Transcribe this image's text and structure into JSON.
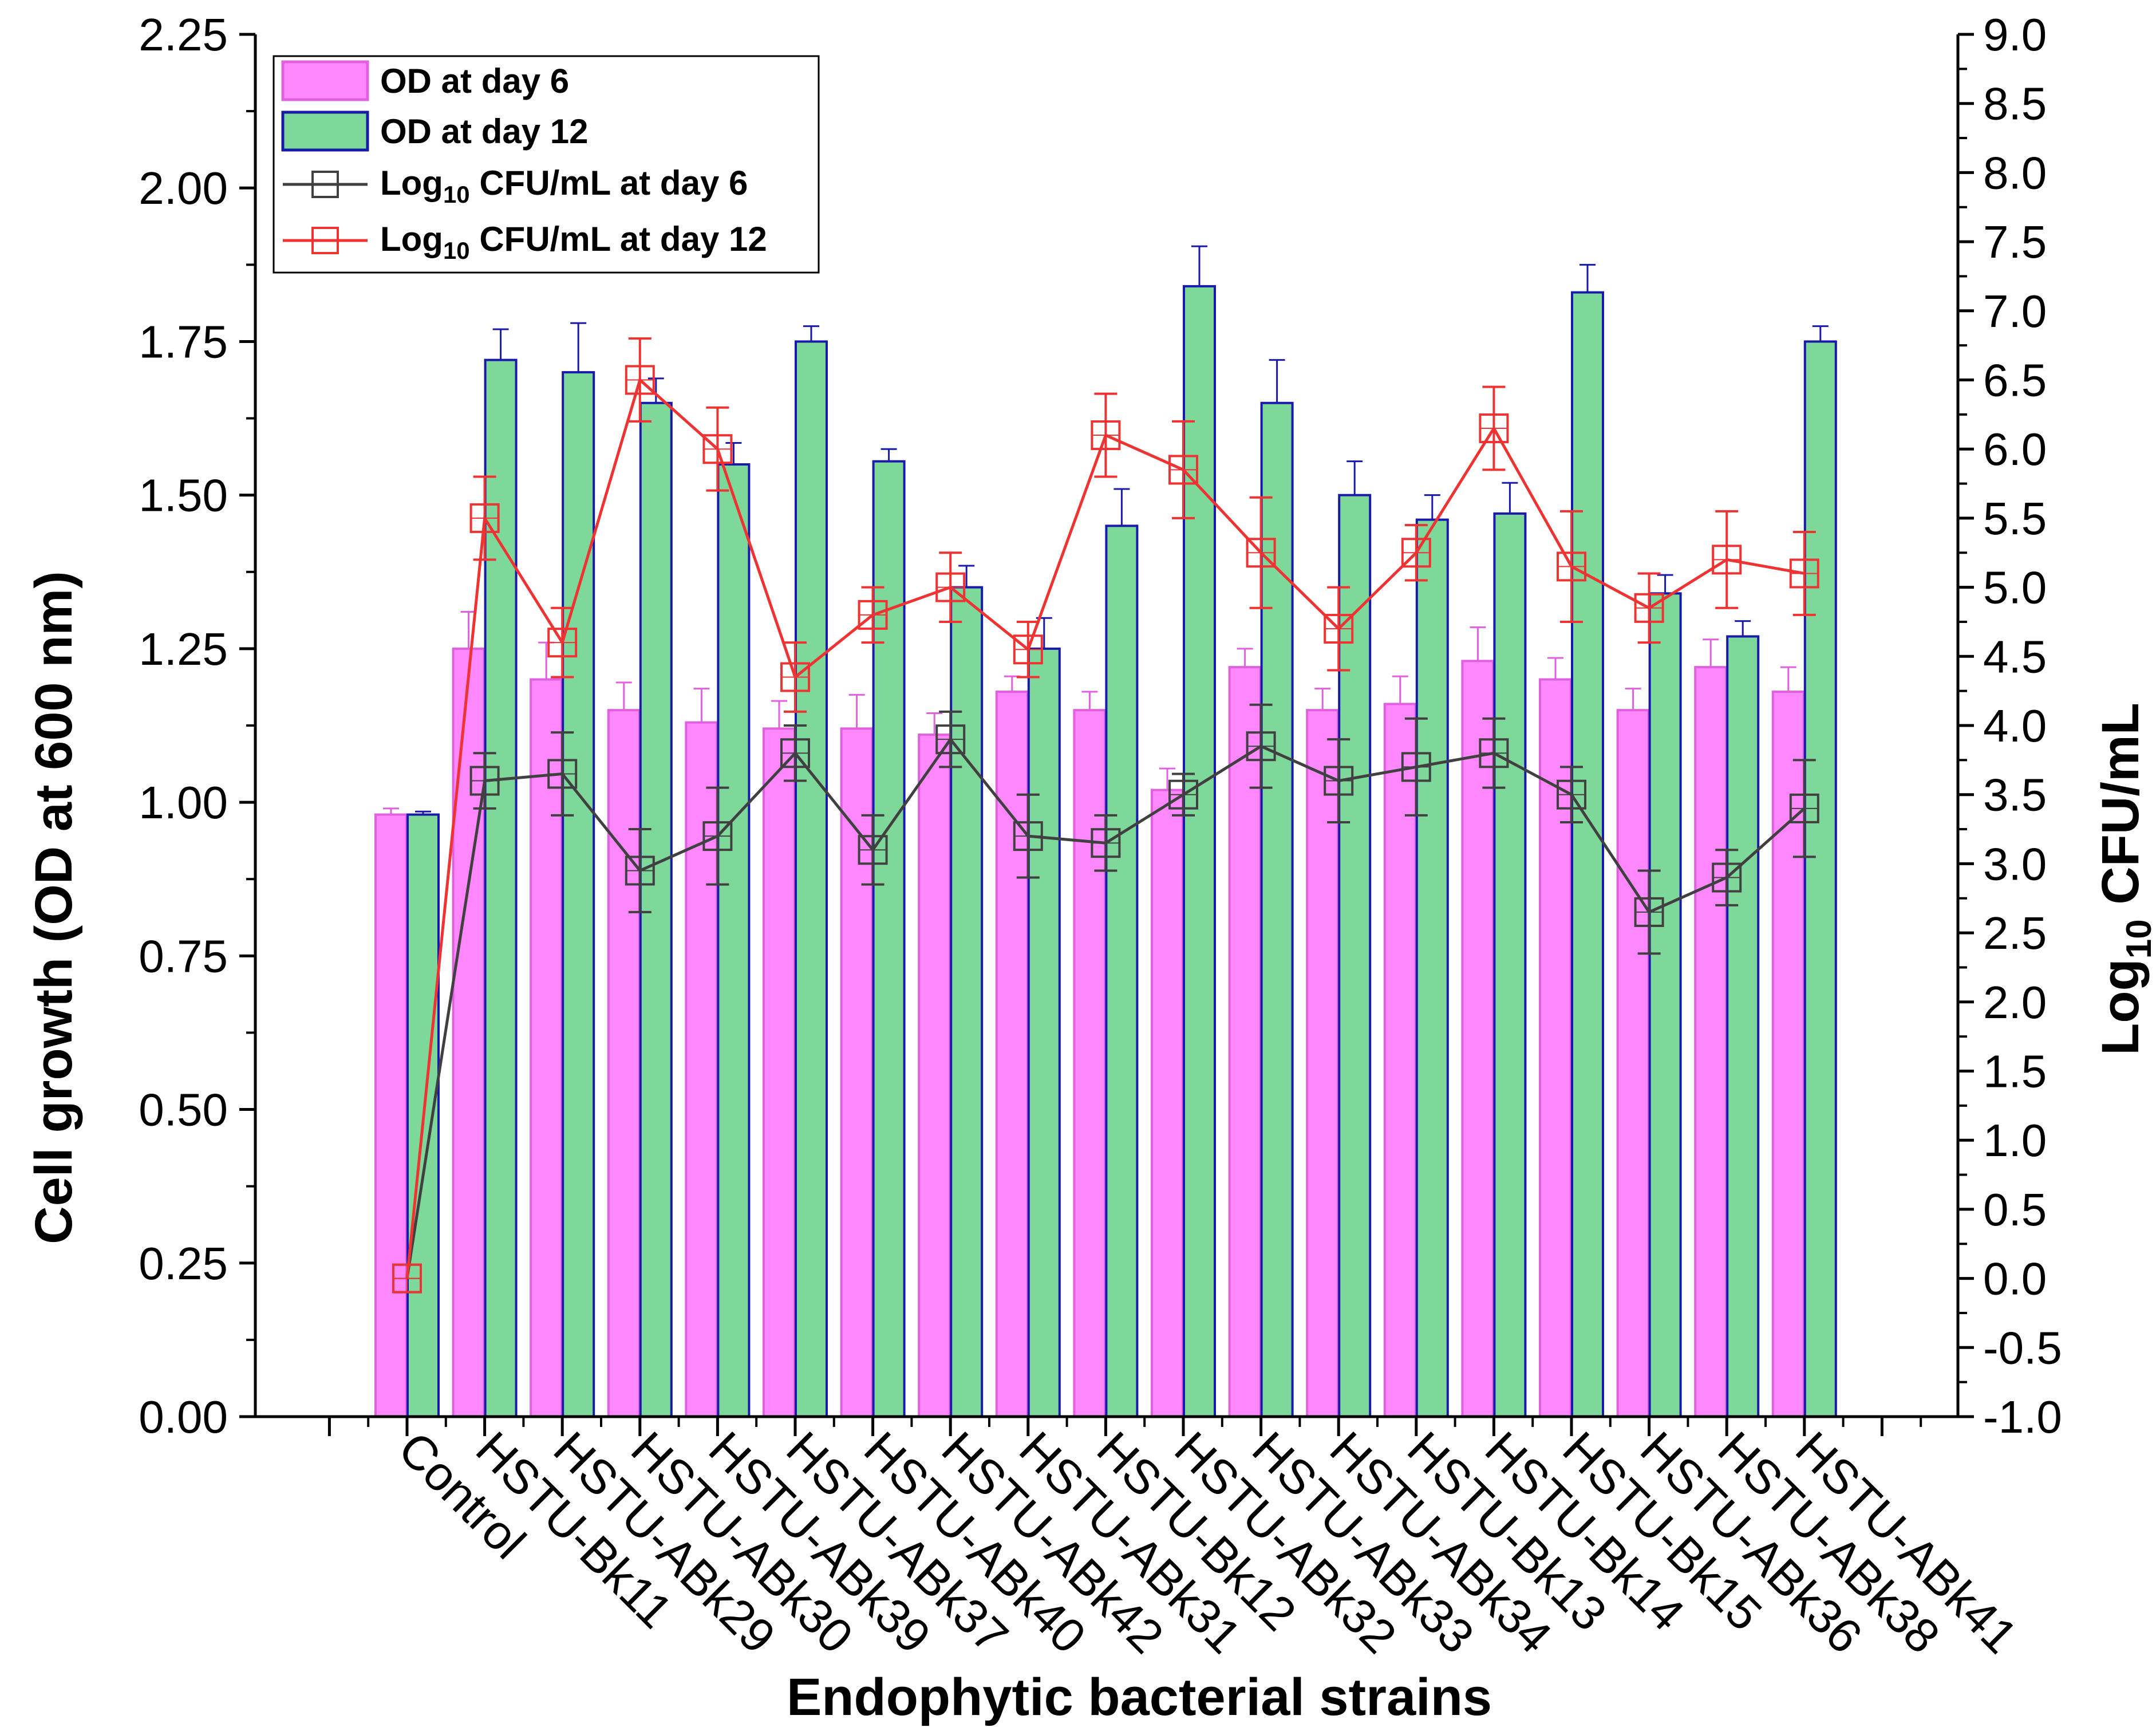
{
  "chart_data": {
    "type": "bar",
    "xlabel": "Endophytic bacterial strains",
    "ylabel": "Cell growth (OD at 600 nm)",
    "y2label_prefix": "Log",
    "y2label_subscript": "10",
    "y2label_suffix": " CFU/mL",
    "ylim": [
      0,
      2.25
    ],
    "y2lim": [
      -1.0,
      9.0
    ],
    "yticks": [
      "0.00",
      "0.25",
      "0.50",
      "0.75",
      "1.00",
      "1.25",
      "1.50",
      "1.75",
      "2.00",
      "2.25"
    ],
    "y2ticks": [
      "-1.0",
      "-0.5",
      "0.0",
      "0.5",
      "1.0",
      "1.5",
      "2.0",
      "2.5",
      "3.0",
      "3.5",
      "4.0",
      "4.5",
      "5.0",
      "5.5",
      "6.0",
      "6.5",
      "7.0",
      "7.5",
      "8.0",
      "8.5",
      "9.0"
    ],
    "categories": [
      "Control",
      "HSTU-Bk11",
      "HSTU-ABk29",
      "HSTU-ABk30",
      "HSTU-ABk39",
      "HSTU-ABk37",
      "HSTU-ABk40",
      "HSTU-ABk42",
      "HSTU-ABk31",
      "HSTU-Bk12",
      "HSTU-ABk32",
      "HSTU-ABk33",
      "HSTU-ABk34",
      "HSTU-Bk13",
      "HSTU-Bk14",
      "HSTU-Bk15",
      "HSTU-ABk36",
      "HSTU-ABk38",
      "HSTU-ABk41"
    ],
    "bar_series": [
      {
        "name": "OD at day 6",
        "axis": "left",
        "color": "#FF88FF",
        "edge_color": "#E060E0",
        "values": [
          0.98,
          1.25,
          1.2,
          1.15,
          1.13,
          1.12,
          1.12,
          1.11,
          1.18,
          1.15,
          1.02,
          1.22,
          1.15,
          1.16,
          1.23,
          1.2,
          1.15,
          1.22,
          1.18
        ],
        "errors": [
          0.01,
          0.06,
          0.06,
          0.045,
          0.055,
          0.045,
          0.055,
          0.035,
          0.025,
          0.03,
          0.035,
          0.03,
          0.035,
          0.045,
          0.055,
          0.035,
          0.035,
          0.045,
          0.04
        ]
      },
      {
        "name": "OD at day 12",
        "axis": "left",
        "color": "#7ED89A",
        "edge_color": "#1A1AAA",
        "values": [
          0.98,
          1.72,
          1.7,
          1.65,
          1.55,
          1.75,
          1.555,
          1.35,
          1.25,
          1.45,
          1.84,
          1.65,
          1.5,
          1.46,
          1.47,
          1.83,
          1.34,
          1.27,
          1.75
        ],
        "errors": [
          0.005,
          0.05,
          0.08,
          0.04,
          0.035,
          0.025,
          0.02,
          0.035,
          0.05,
          0.06,
          0.065,
          0.07,
          0.055,
          0.04,
          0.05,
          0.045,
          0.03,
          0.025,
          0.025
        ]
      }
    ],
    "line_series": [
      {
        "name": "Log10 CFU/mL at day 6",
        "label_prefix": "Log",
        "label_subscript": "10",
        "label_suffix": " CFU/mL at day 6",
        "axis": "right",
        "color": "#404040",
        "marker": "square-open",
        "values": [
          0.0,
          3.6,
          3.65,
          2.95,
          3.2,
          3.8,
          3.1,
          3.9,
          3.2,
          3.15,
          3.5,
          3.85,
          3.6,
          3.7,
          3.8,
          3.5,
          2.65,
          2.9,
          3.4
        ],
        "errors": [
          0.0,
          0.2,
          0.3,
          0.3,
          0.35,
          0.2,
          0.25,
          0.2,
          0.3,
          0.2,
          0.15,
          0.3,
          0.3,
          0.35,
          0.25,
          0.2,
          0.3,
          0.2,
          0.35
        ]
      },
      {
        "name": "Log10 CFU/mL at day 12",
        "label_prefix": "Log",
        "label_subscript": "10",
        "label_suffix": " CFU/mL at day 12",
        "axis": "right",
        "color": "#EE3333",
        "marker": "square-open",
        "values": [
          0.0,
          5.5,
          4.6,
          6.5,
          6.0,
          4.35,
          4.8,
          5.0,
          4.55,
          6.1,
          5.85,
          5.25,
          4.7,
          5.25,
          6.15,
          5.15,
          4.85,
          5.2,
          5.1
        ],
        "errors": [
          0.0,
          0.3,
          0.25,
          0.3,
          0.3,
          0.25,
          0.2,
          0.25,
          0.2,
          0.3,
          0.35,
          0.4,
          0.3,
          0.2,
          0.3,
          0.4,
          0.25,
          0.35,
          0.3
        ]
      }
    ],
    "legend": "top-left"
  }
}
